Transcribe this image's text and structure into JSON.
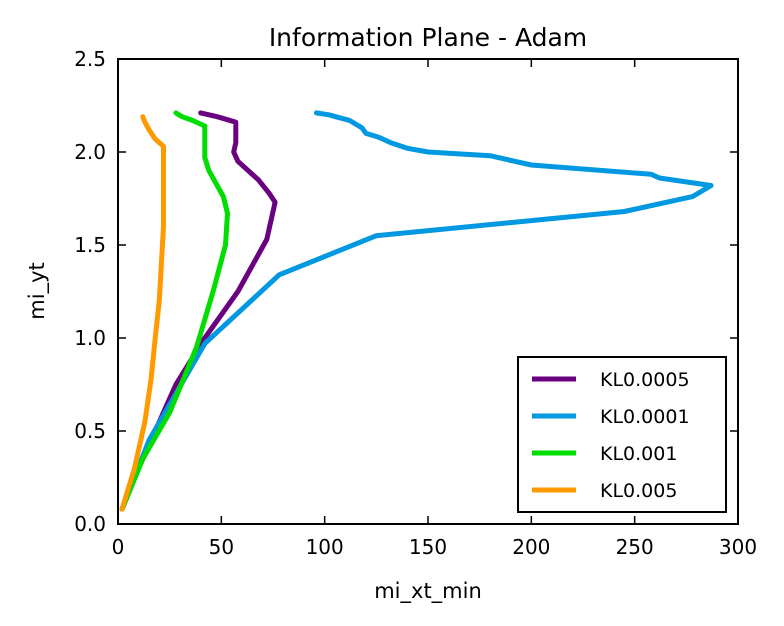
{
  "chart_data": {
    "type": "line",
    "title": "Information Plane - Adam",
    "xlabel": "mi_xt_min",
    "ylabel": "mi_yt",
    "xlim": [
      0,
      300
    ],
    "ylim": [
      0.0,
      2.5
    ],
    "xticks": [
      0,
      50,
      100,
      150,
      200,
      250,
      300
    ],
    "yticks": [
      0.0,
      0.5,
      1.0,
      1.5,
      2.0,
      2.5
    ],
    "xtick_labels": [
      "0",
      "50",
      "100",
      "150",
      "200",
      "250",
      "300"
    ],
    "ytick_labels": [
      "0.0",
      "0.5",
      "1.0",
      "1.5",
      "2.0",
      "2.5"
    ],
    "grid": false,
    "legend_position": "lower-right",
    "series": [
      {
        "name": "KL0.0005",
        "color": "#6b0080",
        "points": [
          [
            2,
            0.08
          ],
          [
            10,
            0.3
          ],
          [
            18,
            0.5
          ],
          [
            28,
            0.75
          ],
          [
            42,
            1.0
          ],
          [
            58,
            1.25
          ],
          [
            72,
            1.53
          ],
          [
            76,
            1.73
          ],
          [
            73,
            1.78
          ],
          [
            68,
            1.85
          ],
          [
            63,
            1.9
          ],
          [
            58,
            1.95
          ],
          [
            56,
            2.0
          ],
          [
            57,
            2.05
          ],
          [
            57,
            2.16
          ],
          [
            48,
            2.19
          ],
          [
            40,
            2.21
          ]
        ]
      },
      {
        "name": "KL0.0001",
        "color": "#0098e0",
        "points": [
          [
            2,
            0.08
          ],
          [
            15,
            0.45
          ],
          [
            42,
            0.97
          ],
          [
            78,
            1.34
          ],
          [
            125,
            1.55
          ],
          [
            245,
            1.68
          ],
          [
            278,
            1.76
          ],
          [
            287,
            1.82
          ],
          [
            262,
            1.86
          ],
          [
            258,
            1.88
          ],
          [
            200,
            1.93
          ],
          [
            180,
            1.98
          ],
          [
            165,
            1.99
          ],
          [
            150,
            2.0
          ],
          [
            140,
            2.02
          ],
          [
            132,
            2.05
          ],
          [
            126,
            2.08
          ],
          [
            120,
            2.1
          ],
          [
            118,
            2.13
          ],
          [
            112,
            2.17
          ],
          [
            102,
            2.2
          ],
          [
            96,
            2.21
          ]
        ]
      },
      {
        "name": "KL0.001",
        "color": "#00dd00",
        "points": [
          [
            2,
            0.08
          ],
          [
            12,
            0.35
          ],
          [
            25,
            0.6
          ],
          [
            38,
            0.95
          ],
          [
            46,
            1.25
          ],
          [
            52,
            1.5
          ],
          [
            53,
            1.67
          ],
          [
            51,
            1.76
          ],
          [
            47,
            1.84
          ],
          [
            44,
            1.9
          ],
          [
            42,
            1.97
          ],
          [
            42,
            2.04
          ],
          [
            42,
            2.14
          ],
          [
            36,
            2.17
          ],
          [
            31,
            2.19
          ],
          [
            28,
            2.21
          ]
        ]
      },
      {
        "name": "KL0.005",
        "color": "#ff9900",
        "points": [
          [
            2,
            0.08
          ],
          [
            8,
            0.3
          ],
          [
            13,
            0.55
          ],
          [
            16,
            0.78
          ],
          [
            18,
            1.0
          ],
          [
            20,
            1.2
          ],
          [
            21,
            1.4
          ],
          [
            22,
            1.6
          ],
          [
            22,
            1.85
          ],
          [
            22,
            2.03
          ],
          [
            18,
            2.07
          ],
          [
            15,
            2.12
          ],
          [
            13,
            2.16
          ],
          [
            12,
            2.19
          ]
        ]
      }
    ]
  }
}
